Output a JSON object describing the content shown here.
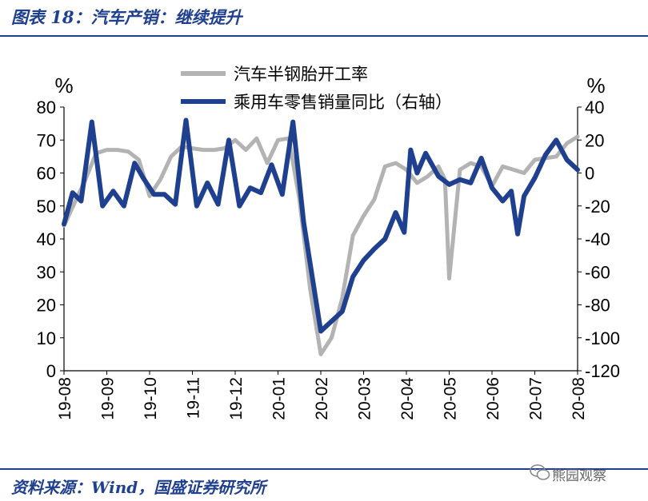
{
  "header": {
    "title": "图表 18：汽车产销：继续提升"
  },
  "footer": {
    "source": "资料来源：Wind，国盛证券研究所",
    "watermark": "熊园观察",
    "watermark_icon": "wechat-icon"
  },
  "colors": {
    "accent": "#1f3f8f",
    "series_primary": "#b3b3b3",
    "series_secondary": "#1f3f8f",
    "axis": "#000000"
  },
  "chart_data": {
    "type": "line",
    "title": "",
    "y_left_unit": "%",
    "y_right_unit": "%",
    "ylim_left": [
      0,
      80
    ],
    "ylim_right": [
      -120,
      40
    ],
    "y_left_ticks": [
      "0",
      "10",
      "20",
      "30",
      "40",
      "50",
      "60",
      "70",
      "80"
    ],
    "y_right_ticks": [
      "-120",
      "-100",
      "-80",
      "-60",
      "-40",
      "-20",
      "0",
      "20",
      "40"
    ],
    "x_ticks": [
      "19-08",
      "19-09",
      "19-10",
      "19-11",
      "19-12",
      "20-01",
      "20-02",
      "20-03",
      "20-04",
      "20-05",
      "20-06",
      "20-07",
      "20-08"
    ],
    "x_range": [
      0,
      12
    ],
    "grid": false,
    "legend_position": "top-center",
    "series": [
      {
        "name": "汽车半钢胎开工率",
        "axis": "left",
        "color": "#b3b3b3",
        "x": [
          0,
          0.25,
          0.5,
          0.75,
          1,
          1.25,
          1.5,
          1.75,
          2,
          2.25,
          2.5,
          2.75,
          3,
          3.25,
          3.5,
          3.75,
          4,
          4.25,
          4.5,
          4.75,
          5,
          5.25,
          5.5,
          5.75,
          6,
          6.25,
          6.5,
          6.75,
          7,
          7.25,
          7.5,
          7.75,
          8,
          8.25,
          8.5,
          8.75,
          8.9,
          9,
          9.25,
          9.5,
          9.75,
          10,
          10.25,
          10.5,
          10.75,
          11,
          11.25,
          11.5,
          11.75,
          12
        ],
        "values": [
          44,
          51,
          58,
          66,
          67,
          67,
          66.5,
          64,
          53,
          58,
          65,
          68,
          67.5,
          67,
          67,
          67.5,
          70,
          67,
          70.5,
          63,
          70,
          70.5,
          52,
          25,
          5,
          10,
          22,
          41,
          47,
          52,
          62,
          63,
          61,
          57,
          59,
          62,
          58,
          28,
          61,
          63,
          62,
          56,
          62,
          61,
          60,
          64,
          64.5,
          65,
          69,
          71
        ]
      },
      {
        "name": "乘用车零售销量同比（右轴）",
        "axis": "right",
        "color": "#1f3f8f",
        "x": [
          0,
          0.2,
          0.4,
          0.65,
          0.9,
          1.15,
          1.4,
          1.65,
          1.85,
          2.1,
          2.35,
          2.6,
          2.85,
          3.1,
          3.35,
          3.6,
          3.85,
          4.1,
          4.35,
          4.6,
          4.85,
          5.1,
          5.35,
          5.6,
          6,
          6.25,
          6.5,
          6.75,
          7,
          7.25,
          7.5,
          7.75,
          7.95,
          8.1,
          8.25,
          8.45,
          8.75,
          9,
          9.25,
          9.5,
          9.75,
          10,
          10.25,
          10.45,
          10.6,
          10.75,
          11,
          11.25,
          11.5,
          11.75,
          12
        ],
        "values": [
          -31,
          -12,
          -17,
          31,
          -20,
          -11,
          -20,
          6,
          -3,
          -13,
          -13,
          -19,
          32,
          -20,
          -6,
          -19,
          20,
          -20,
          -9,
          -12,
          5,
          -13,
          31,
          -30,
          -96,
          -90,
          -84,
          -63,
          -53,
          -46,
          -40,
          -24,
          -36,
          14,
          0,
          12,
          -2,
          -7,
          -4,
          -6,
          9,
          -9,
          -17,
          -11,
          -37,
          -14,
          -3,
          11,
          20,
          8,
          2
        ]
      }
    ]
  }
}
